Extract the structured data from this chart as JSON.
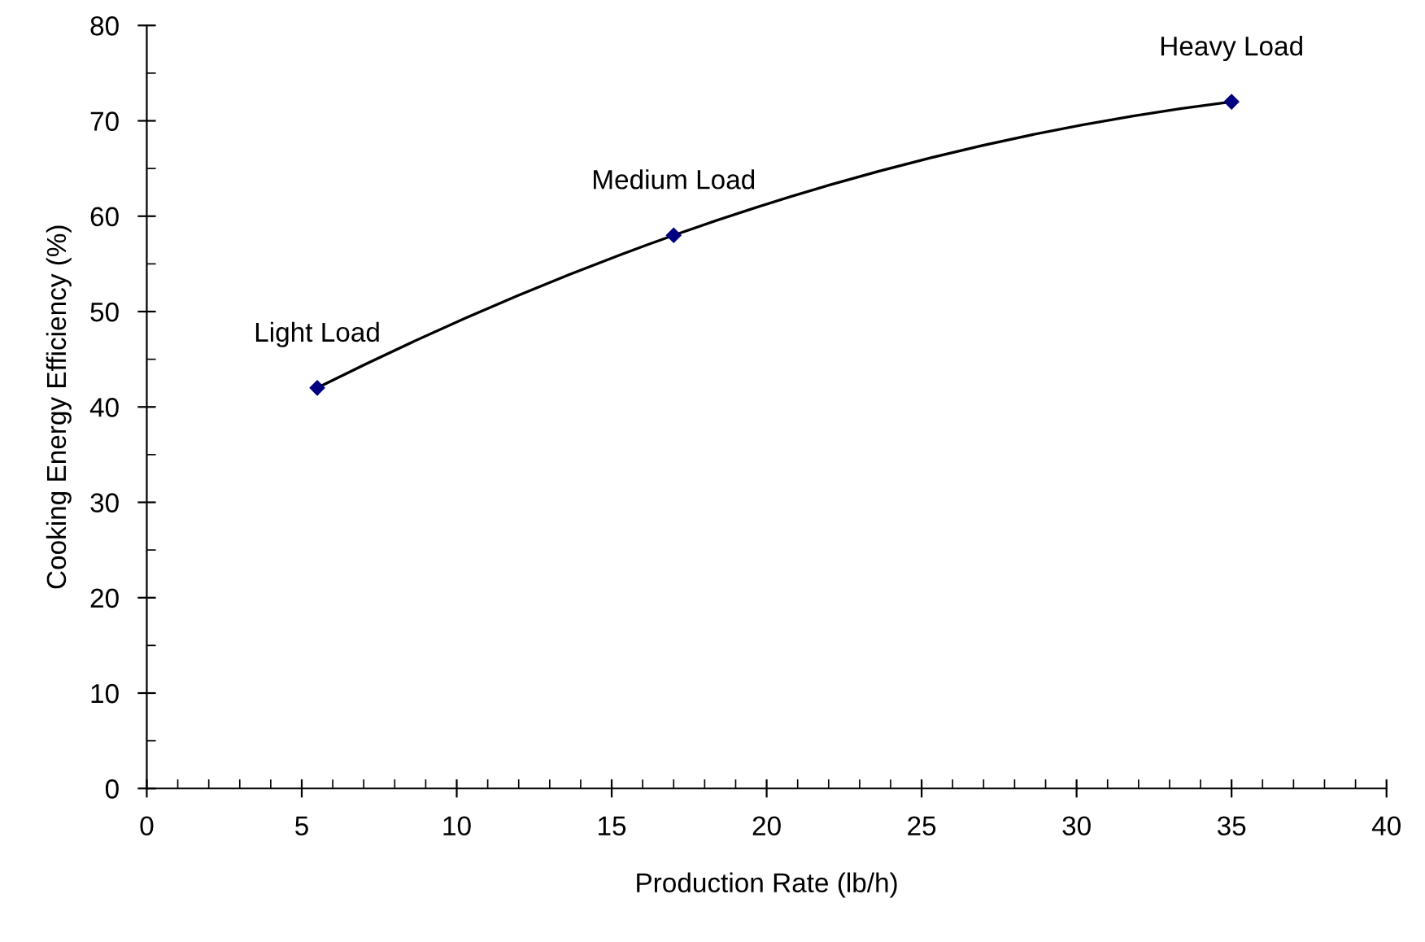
{
  "chart_data": {
    "type": "line",
    "xlabel": "Production Rate (lb/h)",
    "ylabel": "Cooking Energy Efficiency (%)",
    "x": [
      5.5,
      17,
      35
    ],
    "series": [
      {
        "color": "#000080",
        "values": [
          42,
          58,
          72
        ]
      }
    ],
    "marker": "diamond",
    "line_style": "solid",
    "grid": false,
    "legend": false,
    "xlim": [
      0,
      40
    ],
    "xticks": [
      0,
      5,
      10,
      15,
      20,
      25,
      30,
      35,
      40
    ],
    "ylim": [
      0,
      80
    ],
    "yticks": [
      0,
      10,
      20,
      30,
      40,
      50,
      60,
      70,
      80
    ],
    "annotations": [
      {
        "text": "Light Load",
        "x": 5.5,
        "y": 42
      },
      {
        "text": "Medium Load",
        "x": 17,
        "y": 58
      },
      {
        "text": "Heavy Load",
        "x": 35,
        "y": 72
      }
    ]
  }
}
